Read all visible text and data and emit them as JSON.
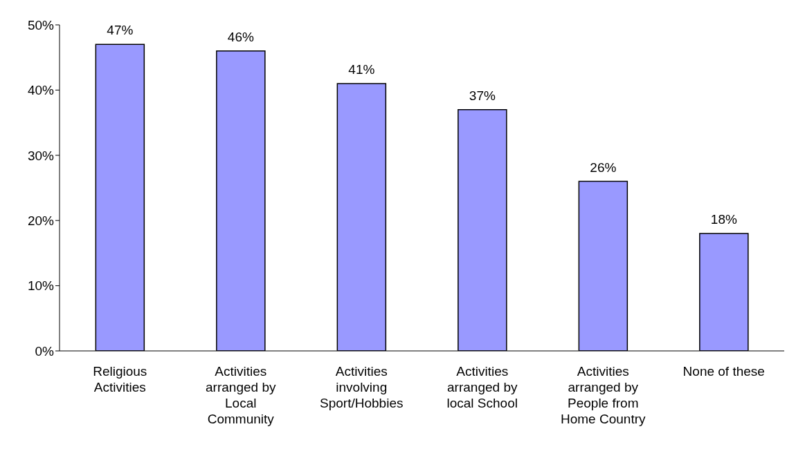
{
  "chart_data": {
    "type": "bar",
    "categories": [
      "Religious Activities",
      "Activities arranged by Local Community",
      "Activities involving Sport/Hobbies",
      "Activities arranged by local School",
      "Activities arranged by People from Home Country",
      "None of these"
    ],
    "values": [
      47,
      46,
      41,
      37,
      26,
      18
    ],
    "value_labels": [
      "47%",
      "46%",
      "41%",
      "37%",
      "26%",
      "18%"
    ],
    "color": "#9999ff",
    "ylim": [
      0,
      50
    ],
    "yticks": [
      {
        "value": 0,
        "label": "0%"
      },
      {
        "value": 10,
        "label": "10%"
      },
      {
        "value": 20,
        "label": "20%"
      },
      {
        "value": 30,
        "label": "30%"
      },
      {
        "value": 40,
        "label": "40%"
      },
      {
        "value": 50,
        "label": "50%"
      }
    ],
    "grid": false,
    "legend": false
  }
}
